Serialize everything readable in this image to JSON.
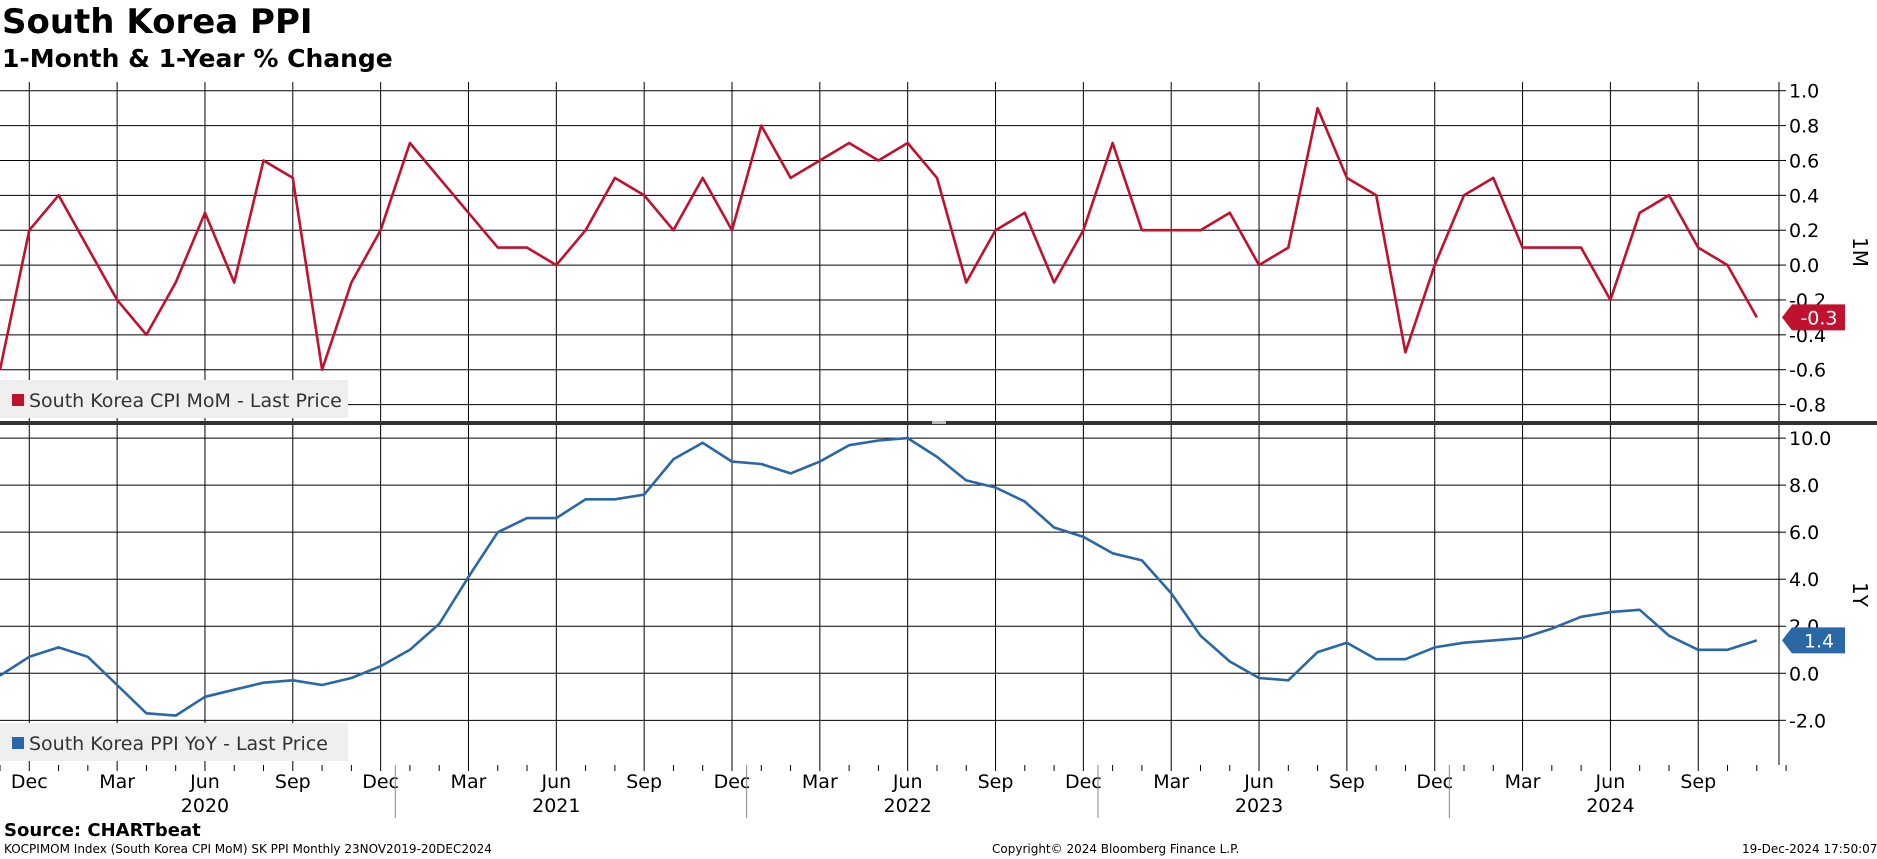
{
  "header": {
    "title": "South Korea PPI",
    "subtitle": "1-Month & 1-Year % Change"
  },
  "footer": {
    "source": "Source: CHARTbeat",
    "ticker_info": "KOCPIMOM Index (South Korea CPI MoM) SK PPI  Monthly 23NOV2019-20DEC2024",
    "copyright": "Copyright© 2024 Bloomberg Finance L.P.",
    "timestamp": "19-Dec-2024 17:50:07"
  },
  "colors": {
    "mom": "#c0112f",
    "yoy": "#2a67a6",
    "grid": "#000000"
  },
  "chart_data": [
    {
      "type": "line",
      "panel": "top",
      "axis_label": "1M",
      "legend": "South Korea CPI MoM - Last Price",
      "last_value_label": "-0.3",
      "ylim": [
        -0.9,
        1.05
      ],
      "yticks": [
        "1.0",
        "0.8",
        "0.6",
        "0.4",
        "0.2",
        "0.0",
        "-0.2",
        "-0.4",
        "-0.6",
        "-0.8"
      ],
      "ytick_values": [
        1.0,
        0.8,
        0.6,
        0.4,
        0.2,
        0.0,
        -0.2,
        -0.4,
        -0.6,
        -0.8
      ],
      "x": [
        "2019-11",
        "2019-12",
        "2020-01",
        "2020-02",
        "2020-03",
        "2020-04",
        "2020-05",
        "2020-06",
        "2020-07",
        "2020-08",
        "2020-09",
        "2020-10",
        "2020-11",
        "2020-12",
        "2021-01",
        "2021-02",
        "2021-03",
        "2021-04",
        "2021-05",
        "2021-06",
        "2021-07",
        "2021-08",
        "2021-09",
        "2021-10",
        "2021-11",
        "2021-12",
        "2022-01",
        "2022-02",
        "2022-03",
        "2022-04",
        "2022-05",
        "2022-06",
        "2022-07",
        "2022-08",
        "2022-09",
        "2022-10",
        "2022-11",
        "2022-12",
        "2023-01",
        "2023-02",
        "2023-03",
        "2023-04",
        "2023-05",
        "2023-06",
        "2023-07",
        "2023-08",
        "2023-09",
        "2023-10",
        "2023-11",
        "2023-12",
        "2024-01",
        "2024-02",
        "2024-03",
        "2024-04",
        "2024-05",
        "2024-06",
        "2024-07",
        "2024-08",
        "2024-09",
        "2024-10",
        "2024-11"
      ],
      "values": [
        -0.6,
        0.2,
        0.4,
        0.1,
        -0.2,
        -0.4,
        -0.1,
        0.3,
        -0.1,
        0.6,
        0.5,
        -0.6,
        -0.1,
        0.2,
        0.7,
        0.5,
        0.3,
        0.1,
        0.1,
        0.0,
        0.2,
        0.5,
        0.4,
        0.2,
        0.5,
        0.2,
        0.8,
        0.5,
        0.6,
        0.7,
        0.6,
        0.7,
        0.5,
        -0.1,
        0.2,
        0.3,
        -0.1,
        0.2,
        0.7,
        0.2,
        0.2,
        0.2,
        0.3,
        0.0,
        0.1,
        0.9,
        0.5,
        0.4,
        -0.5,
        0.0,
        0.4,
        0.5,
        0.1,
        0.1,
        0.1,
        -0.2,
        0.3,
        0.4,
        0.1,
        0.0,
        -0.3
      ]
    },
    {
      "type": "line",
      "panel": "bottom",
      "axis_label": "1Y",
      "legend": "South Korea PPI YoY - Last Price",
      "last_value_label": "1.4",
      "ylim": [
        -3.9,
        10.6
      ],
      "yticks": [
        "10.0",
        "8.0",
        "6.0",
        "4.0",
        "2.0",
        "0.0",
        "-2.0"
      ],
      "ytick_values": [
        10.0,
        8.0,
        6.0,
        4.0,
        2.0,
        0.0,
        -2.0
      ],
      "x": [
        "2019-11",
        "2019-12",
        "2020-01",
        "2020-02",
        "2020-03",
        "2020-04",
        "2020-05",
        "2020-06",
        "2020-07",
        "2020-08",
        "2020-09",
        "2020-10",
        "2020-11",
        "2020-12",
        "2021-01",
        "2021-02",
        "2021-03",
        "2021-04",
        "2021-05",
        "2021-06",
        "2021-07",
        "2021-08",
        "2021-09",
        "2021-10",
        "2021-11",
        "2021-12",
        "2022-01",
        "2022-02",
        "2022-03",
        "2022-04",
        "2022-05",
        "2022-06",
        "2022-07",
        "2022-08",
        "2022-09",
        "2022-10",
        "2022-11",
        "2022-12",
        "2023-01",
        "2023-02",
        "2023-03",
        "2023-04",
        "2023-05",
        "2023-06",
        "2023-07",
        "2023-08",
        "2023-09",
        "2023-10",
        "2023-11",
        "2023-12",
        "2024-01",
        "2024-02",
        "2024-03",
        "2024-04",
        "2024-05",
        "2024-06",
        "2024-07",
        "2024-08",
        "2024-09",
        "2024-10",
        "2024-11"
      ],
      "values": [
        -0.1,
        0.7,
        1.1,
        0.7,
        -0.5,
        -1.7,
        -1.8,
        -1.0,
        -0.7,
        -0.4,
        -0.3,
        -0.5,
        -0.2,
        0.3,
        1.0,
        2.1,
        4.1,
        6.0,
        6.6,
        6.6,
        7.4,
        7.4,
        7.6,
        9.1,
        9.8,
        9.0,
        8.9,
        8.5,
        9.0,
        9.7,
        9.9,
        10.0,
        9.2,
        8.2,
        7.9,
        7.3,
        6.2,
        5.8,
        5.1,
        4.8,
        3.4,
        1.6,
        0.5,
        -0.2,
        -0.3,
        0.9,
        1.3,
        0.6,
        0.6,
        1.1,
        1.3,
        1.4,
        1.5,
        1.9,
        2.4,
        2.6,
        2.7,
        1.6,
        1.0,
        1.0,
        1.4
      ]
    }
  ],
  "x_axis": {
    "month_ticks": [
      {
        "date": "2019-12",
        "label": "Dec"
      },
      {
        "date": "2020-03",
        "label": "Mar"
      },
      {
        "date": "2020-06",
        "label": "Jun"
      },
      {
        "date": "2020-09",
        "label": "Sep"
      },
      {
        "date": "2020-12",
        "label": "Dec"
      },
      {
        "date": "2021-03",
        "label": "Mar"
      },
      {
        "date": "2021-06",
        "label": "Jun"
      },
      {
        "date": "2021-09",
        "label": "Sep"
      },
      {
        "date": "2021-12",
        "label": "Dec"
      },
      {
        "date": "2022-03",
        "label": "Mar"
      },
      {
        "date": "2022-06",
        "label": "Jun"
      },
      {
        "date": "2022-09",
        "label": "Sep"
      },
      {
        "date": "2022-12",
        "label": "Dec"
      },
      {
        "date": "2023-03",
        "label": "Mar"
      },
      {
        "date": "2023-06",
        "label": "Jun"
      },
      {
        "date": "2023-09",
        "label": "Sep"
      },
      {
        "date": "2023-12",
        "label": "Dec"
      },
      {
        "date": "2024-03",
        "label": "Mar"
      },
      {
        "date": "2024-06",
        "label": "Jun"
      },
      {
        "date": "2024-09",
        "label": "Sep"
      }
    ],
    "year_labels": [
      {
        "date": "2020-06",
        "label": "2020"
      },
      {
        "date": "2021-06",
        "label": "2021"
      },
      {
        "date": "2022-06",
        "label": "2022"
      },
      {
        "date": "2023-06",
        "label": "2023"
      },
      {
        "date": "2024-06",
        "label": "2024"
      }
    ],
    "year_separators": [
      "2021-01",
      "2022-01",
      "2023-01",
      "2024-01"
    ]
  }
}
